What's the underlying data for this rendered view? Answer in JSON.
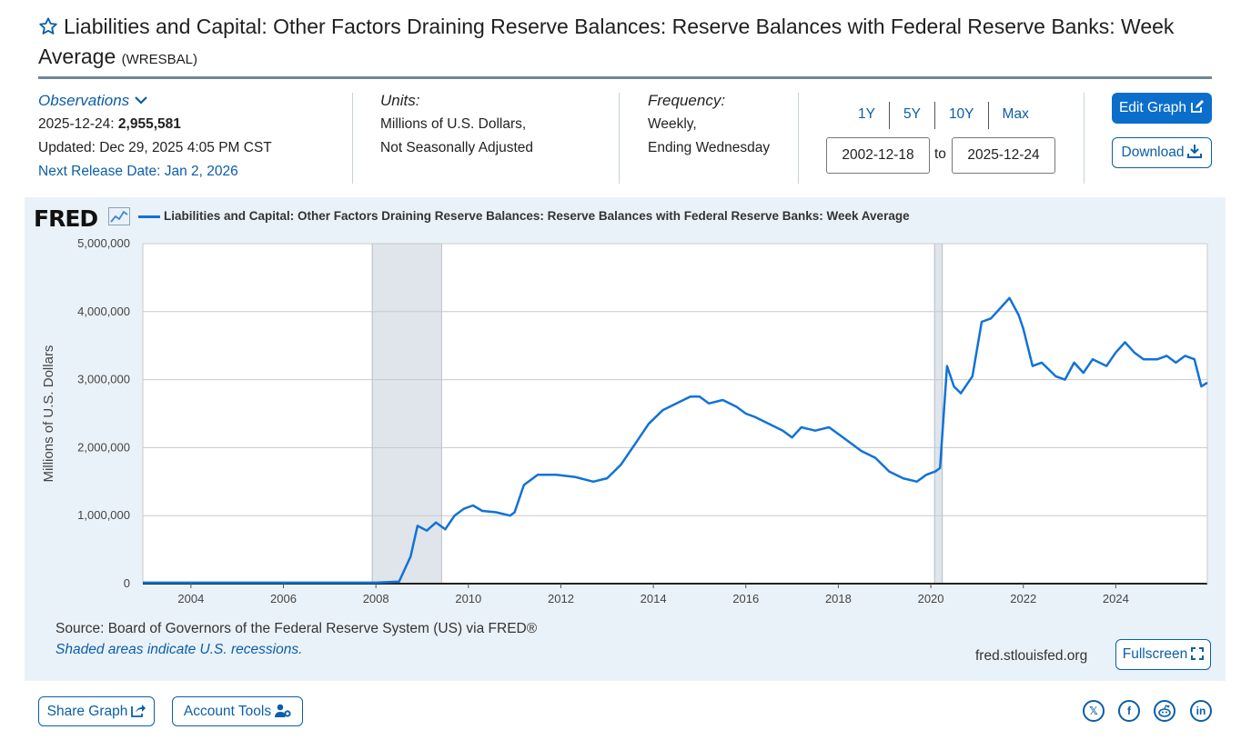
{
  "header": {
    "title": "Liabilities and Capital: Other Factors Draining Reserve Balances: Reserve Balances with Federal Reserve Banks: Week Average",
    "series_id": "(WRESBAL)"
  },
  "observations": {
    "label": "Observations",
    "date": "2025-12-24:",
    "value": "2,955,581",
    "updated": "Updated: Dec 29, 2025 4:05 PM CST",
    "next_release": "Next Release Date: Jan 2, 2026"
  },
  "units": {
    "label": "Units:",
    "line1": "Millions of U.S. Dollars,",
    "line2": "Not Seasonally Adjusted"
  },
  "frequency": {
    "label": "Frequency:",
    "line1": "Weekly,",
    "line2": "Ending Wednesday"
  },
  "range": {
    "buttons": [
      "1Y",
      "5Y",
      "10Y",
      "Max"
    ],
    "start": "2002-12-18",
    "to": "to",
    "end": "2025-12-24"
  },
  "actions": {
    "edit": "Edit Graph",
    "download": "Download",
    "fullscreen": "Fullscreen",
    "share": "Share Graph",
    "account": "Account Tools"
  },
  "graph": {
    "logo": "FRED",
    "source": "Source: Board of Governors of the Federal Reserve System (US) via FRED®",
    "recession_note": "Shaded areas indicate U.S. recessions.",
    "url": "fred.stlouisfed.org"
  },
  "social": [
    "x-icon",
    "facebook-icon",
    "reddit-icon",
    "linkedin-icon"
  ],
  "colors": {
    "line": "#1172d8",
    "accent": "#0b5ea8",
    "panel": "#eaf2f9",
    "recession": "#dfe5eb"
  },
  "chart_data": {
    "type": "line",
    "title": "Liabilities and Capital: Other Factors Draining Reserve Balances: Reserve Balances with Federal Reserve Banks: Week Average",
    "ylabel": "Millions of U.S. Dollars",
    "xlabel": "",
    "xlim": [
      2002.96,
      2025.98
    ],
    "ylim": [
      0,
      5000000
    ],
    "x_ticks": [
      2004,
      2006,
      2008,
      2010,
      2012,
      2014,
      2016,
      2018,
      2020,
      2022,
      2024
    ],
    "y_ticks": [
      0,
      1000000,
      2000000,
      3000000,
      4000000,
      5000000
    ],
    "y_tick_labels": [
      "0",
      "1,000,000",
      "2,000,000",
      "3,000,000",
      "4,000,000",
      "5,000,000"
    ],
    "recessions": [
      [
        2007.92,
        2009.42
      ],
      [
        2020.08,
        2020.25
      ]
    ],
    "series": [
      {
        "name": "Liabilities and Capital: Other Factors Draining Reserve Balances: Reserve Balances with Federal Reserve Banks: Week Average",
        "x": [
          2002.96,
          2004,
          2006,
          2008,
          2008.5,
          2008.75,
          2008.9,
          2009.1,
          2009.3,
          2009.5,
          2009.7,
          2009.9,
          2010.1,
          2010.3,
          2010.6,
          2010.9,
          2011.0,
          2011.2,
          2011.5,
          2011.9,
          2012.3,
          2012.7,
          2013.0,
          2013.3,
          2013.6,
          2013.9,
          2014.2,
          2014.5,
          2014.8,
          2015.0,
          2015.2,
          2015.5,
          2015.8,
          2016.0,
          2016.2,
          2016.5,
          2016.8,
          2017.0,
          2017.2,
          2017.5,
          2017.8,
          2018.0,
          2018.2,
          2018.5,
          2018.8,
          2019.1,
          2019.4,
          2019.7,
          2019.9,
          2020.1,
          2020.2,
          2020.35,
          2020.5,
          2020.65,
          2020.9,
          2021.1,
          2021.3,
          2021.5,
          2021.7,
          2021.9,
          2022.0,
          2022.2,
          2022.4,
          2022.7,
          2022.9,
          2023.1,
          2023.3,
          2023.5,
          2023.8,
          2024.0,
          2024.2,
          2024.4,
          2024.6,
          2024.9,
          2025.1,
          2025.3,
          2025.5,
          2025.7,
          2025.85,
          2025.98
        ],
        "values": [
          15000,
          15000,
          15000,
          15000,
          30000,
          400000,
          850000,
          780000,
          900000,
          800000,
          1000000,
          1100000,
          1150000,
          1070000,
          1050000,
          1000000,
          1050000,
          1450000,
          1600000,
          1600000,
          1570000,
          1500000,
          1550000,
          1750000,
          2050000,
          2350000,
          2550000,
          2650000,
          2750000,
          2750000,
          2650000,
          2700000,
          2600000,
          2500000,
          2450000,
          2350000,
          2250000,
          2150000,
          2300000,
          2250000,
          2300000,
          2200000,
          2100000,
          1950000,
          1850000,
          1650000,
          1550000,
          1500000,
          1600000,
          1650000,
          1700000,
          3200000,
          2900000,
          2800000,
          3050000,
          3850000,
          3900000,
          4050000,
          4200000,
          3950000,
          3750000,
          3200000,
          3250000,
          3050000,
          3000000,
          3250000,
          3100000,
          3300000,
          3200000,
          3400000,
          3550000,
          3400000,
          3300000,
          3300000,
          3350000,
          3250000,
          3350000,
          3300000,
          2900000,
          2955581
        ]
      }
    ]
  }
}
